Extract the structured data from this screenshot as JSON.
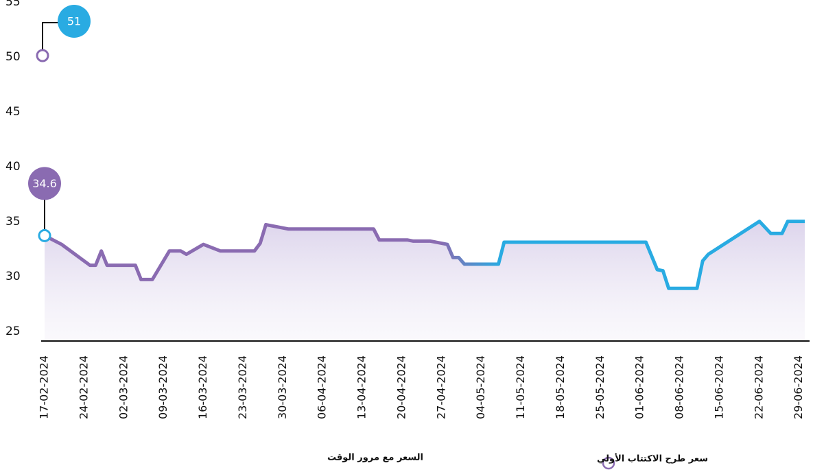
{
  "chart_data": {
    "type": "line",
    "x": [
      "17-02-2024",
      "20-02-2024",
      "25-02-2024",
      "26-02-2024",
      "27-02-2024",
      "28-02-2024",
      "04-03-2024",
      "05-03-2024",
      "07-03-2024",
      "10-03-2024",
      "12-03-2024",
      "13-03-2024",
      "16-03-2024",
      "19-03-2024",
      "25-03-2024",
      "26-03-2024",
      "27-03-2024",
      "31-03-2024",
      "15-04-2024",
      "16-04-2024",
      "21-04-2024",
      "22-04-2024",
      "25-04-2024",
      "28-04-2024",
      "29-04-2024",
      "30-04-2024",
      "01-05-2024",
      "07-05-2024",
      "08-05-2024",
      "02-06-2024",
      "04-06-2024",
      "05-06-2024",
      "06-06-2024",
      "11-06-2024",
      "12-06-2024",
      "13-06-2024",
      "22-06-2024",
      "24-06-2024",
      "26-06-2024",
      "27-06-2024",
      "30-06-2024"
    ],
    "series": [
      {
        "name": "السعر مع مرور الوقت",
        "color": "#8a6bb1",
        "color_end": "#29abe2",
        "values": [
          34.6,
          33.8,
          31.9,
          31.9,
          33.2,
          31.9,
          31.9,
          30.6,
          30.6,
          33.2,
          33.2,
          32.9,
          33.8,
          33.2,
          33.2,
          33.9,
          35.6,
          35.2,
          35.2,
          34.2,
          34.2,
          34.1,
          34.1,
          33.8,
          32.6,
          32.6,
          32,
          32,
          34,
          34,
          31.5,
          31.4,
          29.8,
          29.8,
          32.3,
          32.9,
          35.9,
          34.8,
          34.8,
          35.9,
          35.9
        ]
      }
    ],
    "ipo": {
      "name": "سعر طرح الاكتتاب الأولي",
      "x": "17-02-2024",
      "value": 51,
      "color": "#8a6bb1",
      "label_color": "#29abe2"
    },
    "xlim": [
      "17-02-2024",
      "30-06-2024"
    ],
    "xticks": [
      "17-02-2024",
      "24-02-2024",
      "02-03-2024",
      "09-03-2024",
      "16-03-2024",
      "23-03-2024",
      "30-03-2024",
      "06-04-2024",
      "13-04-2024",
      "20-04-2024",
      "27-04-2024",
      "04-05-2024",
      "11-05-2024",
      "18-05-2024",
      "25-05-2024",
      "01-06-2024",
      "08-06-2024",
      "15-06-2024",
      "22-06-2024",
      "29-06-2024"
    ],
    "ylim": [
      25,
      55
    ],
    "yticks": [
      25,
      30,
      35,
      40,
      45,
      50,
      55
    ]
  }
}
